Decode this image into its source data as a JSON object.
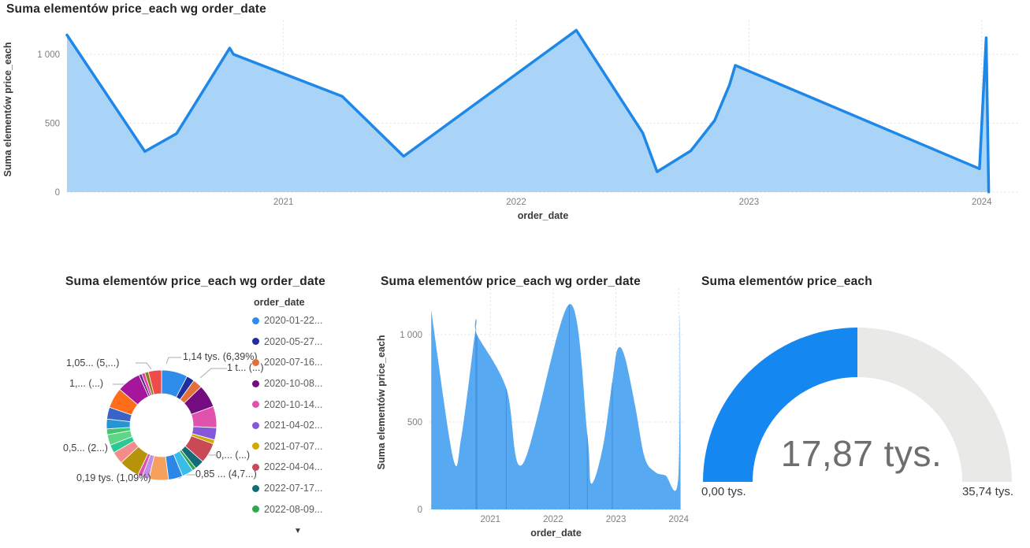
{
  "chart_data": [
    {
      "id": "top-area",
      "type": "area",
      "title": "Suma elementów price_each wg order_date",
      "xlabel": "order_date",
      "ylabel": "Suma elementów price_each",
      "smooth": false,
      "line_color": "#1e88e8",
      "line_width": 3.5,
      "fill_color": "#a9d3f7",
      "grid": "dotted",
      "legend_position": "none",
      "ylim": [
        0,
        1200
      ],
      "xlim": [
        2020.07,
        2024.16
      ],
      "yticks": [
        {
          "value": 0,
          "label": "0"
        },
        {
          "value": 500,
          "label": "500"
        },
        {
          "value": 1000,
          "label": "1 000"
        }
      ],
      "xticks": [
        {
          "value": 2021,
          "label": "2021"
        },
        {
          "value": 2022,
          "label": "2022"
        },
        {
          "value": 2023,
          "label": "2023"
        },
        {
          "value": 2024,
          "label": "2024"
        }
      ],
      "points": [
        [
          "2020-01-22",
          1140
        ],
        [
          "2020-05-27",
          295
        ],
        [
          "2020-07-16",
          425
        ],
        [
          "2020-10-08",
          1045
        ],
        [
          "2020-10-14",
          1000
        ],
        [
          "2021-04-02",
          695
        ],
        [
          "2021-07-07",
          260
        ],
        [
          "2022-04-04",
          1175
        ],
        [
          "2022-07-17",
          430
        ],
        [
          "2022-08-09",
          148
        ],
        [
          "2022-10-01",
          300
        ],
        [
          "2022-11-08",
          520
        ],
        [
          "2022-12-01",
          780
        ],
        [
          "2022-12-10",
          920
        ],
        [
          "2023-12-28",
          170
        ],
        [
          "2024-01-08",
          1120
        ],
        [
          "2024-01-12",
          2
        ]
      ]
    },
    {
      "id": "donut",
      "type": "pie",
      "title": "Suma elementów price_each wg order_date",
      "legend_title": "order_date",
      "legend_more_icon": "▼",
      "legend": [
        {
          "label": "2020-01-22...",
          "color": "#2e8cea"
        },
        {
          "label": "2020-05-27...",
          "color": "#1f2d9e"
        },
        {
          "label": "2020-07-16...",
          "color": "#e2703d"
        },
        {
          "label": "2020-10-08...",
          "color": "#730c7e"
        },
        {
          "label": "2020-10-14...",
          "color": "#e052ae"
        },
        {
          "label": "2021-04-02...",
          "color": "#8458d8"
        },
        {
          "label": "2021-07-07...",
          "color": "#d1a900"
        },
        {
          "label": "2022-04-04...",
          "color": "#c94a54"
        },
        {
          "label": "2022-07-17...",
          "color": "#156a78"
        },
        {
          "label": "2022-08-09...",
          "color": "#2ea84e"
        }
      ],
      "segments": [
        {
          "color": "#2e8cea",
          "weight": 6.39
        },
        {
          "color": "#1f2d9e",
          "weight": 1.9
        },
        {
          "color": "#e2703d",
          "weight": 2.3
        },
        {
          "color": "#730c7e",
          "weight": 5.6
        },
        {
          "color": "#e052ae",
          "weight": 5.2
        },
        {
          "color": "#8458d8",
          "weight": 3.0
        },
        {
          "color": "#d1a900",
          "weight": 1.0
        },
        {
          "color": "#c94a54",
          "weight": 5.0
        },
        {
          "color": "#156a78",
          "weight": 2.3
        },
        {
          "color": "#2ea84e",
          "weight": 0.9
        },
        {
          "color": "#38bce8",
          "weight": 2.8
        },
        {
          "color": "#2c87e8",
          "weight": 3.5
        },
        {
          "color": "#f5a05e",
          "weight": 4.77
        },
        {
          "color": "#be8ee8",
          "weight": 1.7
        },
        {
          "color": "#e050b0",
          "weight": 1.09
        },
        {
          "color": "#b5940a",
          "weight": 5.0
        },
        {
          "color": "#f58c8c",
          "weight": 3.0
        },
        {
          "color": "#2bc795",
          "weight": 2.0
        },
        {
          "color": "#5fd687",
          "weight": 2.6
        },
        {
          "color": "#3dc96e",
          "weight": 1.4
        },
        {
          "color": "#2795d4",
          "weight": 2.4
        },
        {
          "color": "#3a62c8",
          "weight": 2.9
        },
        {
          "color": "#ff6c1a",
          "weight": 5.0
        },
        {
          "color": "#a6169c",
          "weight": 5.8
        },
        {
          "color": "#5c2d91",
          "weight": 0.7
        },
        {
          "color": "#e83e9c",
          "weight": 0.8
        },
        {
          "color": "#8b7d1a",
          "weight": 0.9
        },
        {
          "color": "#f04b4b",
          "weight": 3.2
        }
      ],
      "callouts": [
        {
          "text": "1,14 tys. (6,39%)"
        },
        {
          "text": "1 t... (...)"
        },
        {
          "text": "0,... (...)"
        },
        {
          "text": "0,85 ... (4,7...)"
        },
        {
          "text": "0,19 tys. (1,09%)"
        },
        {
          "text": "0,5... (2...)"
        },
        {
          "text": "1,... (...)"
        },
        {
          "text": "1,05... (5,...)"
        }
      ]
    },
    {
      "id": "mid-area",
      "type": "area",
      "title": "Suma elementów price_each wg order_date",
      "xlabel": "order_date",
      "ylabel": "Suma elementów price_each",
      "smooth": true,
      "line_color": "#57a9f2",
      "line_width": 0,
      "fill_color": "#57a9f2",
      "marker_color": "rgba(25,95,185,0.35)",
      "grid": "dotted",
      "legend_position": "none",
      "ylim": [
        0,
        1225
      ],
      "xlim": [
        2020.03,
        2024.06
      ],
      "yticks": [
        {
          "value": 0,
          "label": "0"
        },
        {
          "value": 500,
          "label": "500"
        },
        {
          "value": 1000,
          "label": "1 000"
        }
      ],
      "xticks": [
        {
          "value": 2021,
          "label": "2021"
        },
        {
          "value": 2022,
          "label": "2022"
        },
        {
          "value": 2023,
          "label": "2023"
        },
        {
          "value": 2024,
          "label": "2024"
        }
      ],
      "marker_dates": [
        "2020-10-08",
        "2020-10-14",
        "2021-04-02",
        "2022-04-04",
        "2022-07-17",
        "2022-12-10"
      ],
      "points": [
        [
          "2020-01-22",
          1140
        ],
        [
          "2020-05-27",
          295
        ],
        [
          "2020-07-16",
          425
        ],
        [
          "2020-10-08",
          1045
        ],
        [
          "2020-10-14",
          1000
        ],
        [
          "2021-04-02",
          695
        ],
        [
          "2021-07-07",
          260
        ],
        [
          "2022-04-04",
          1175
        ],
        [
          "2022-07-17",
          430
        ],
        [
          "2022-08-09",
          148
        ],
        [
          "2022-10-15",
          350
        ],
        [
          "2022-12-10",
          730
        ],
        [
          "2023-01-10",
          915
        ],
        [
          "2023-02-20",
          880
        ],
        [
          "2023-04-20",
          600
        ],
        [
          "2023-06-15",
          300
        ],
        [
          "2023-08-15",
          215
        ],
        [
          "2023-10-15",
          195
        ],
        [
          "2023-12-28",
          170
        ],
        [
          "2024-01-08",
          1120
        ],
        [
          "2024-01-12",
          2
        ]
      ]
    },
    {
      "id": "gauge",
      "type": "gauge",
      "title": "Suma elementów price_each",
      "value": 17.87,
      "min": 0,
      "max": 35.74,
      "value_label": "17,87 tys.",
      "min_label": "0,00 tys.",
      "max_label": "35,74 tys.",
      "fill_color": "#1487f0",
      "track_color": "#e9e9e7"
    }
  ]
}
